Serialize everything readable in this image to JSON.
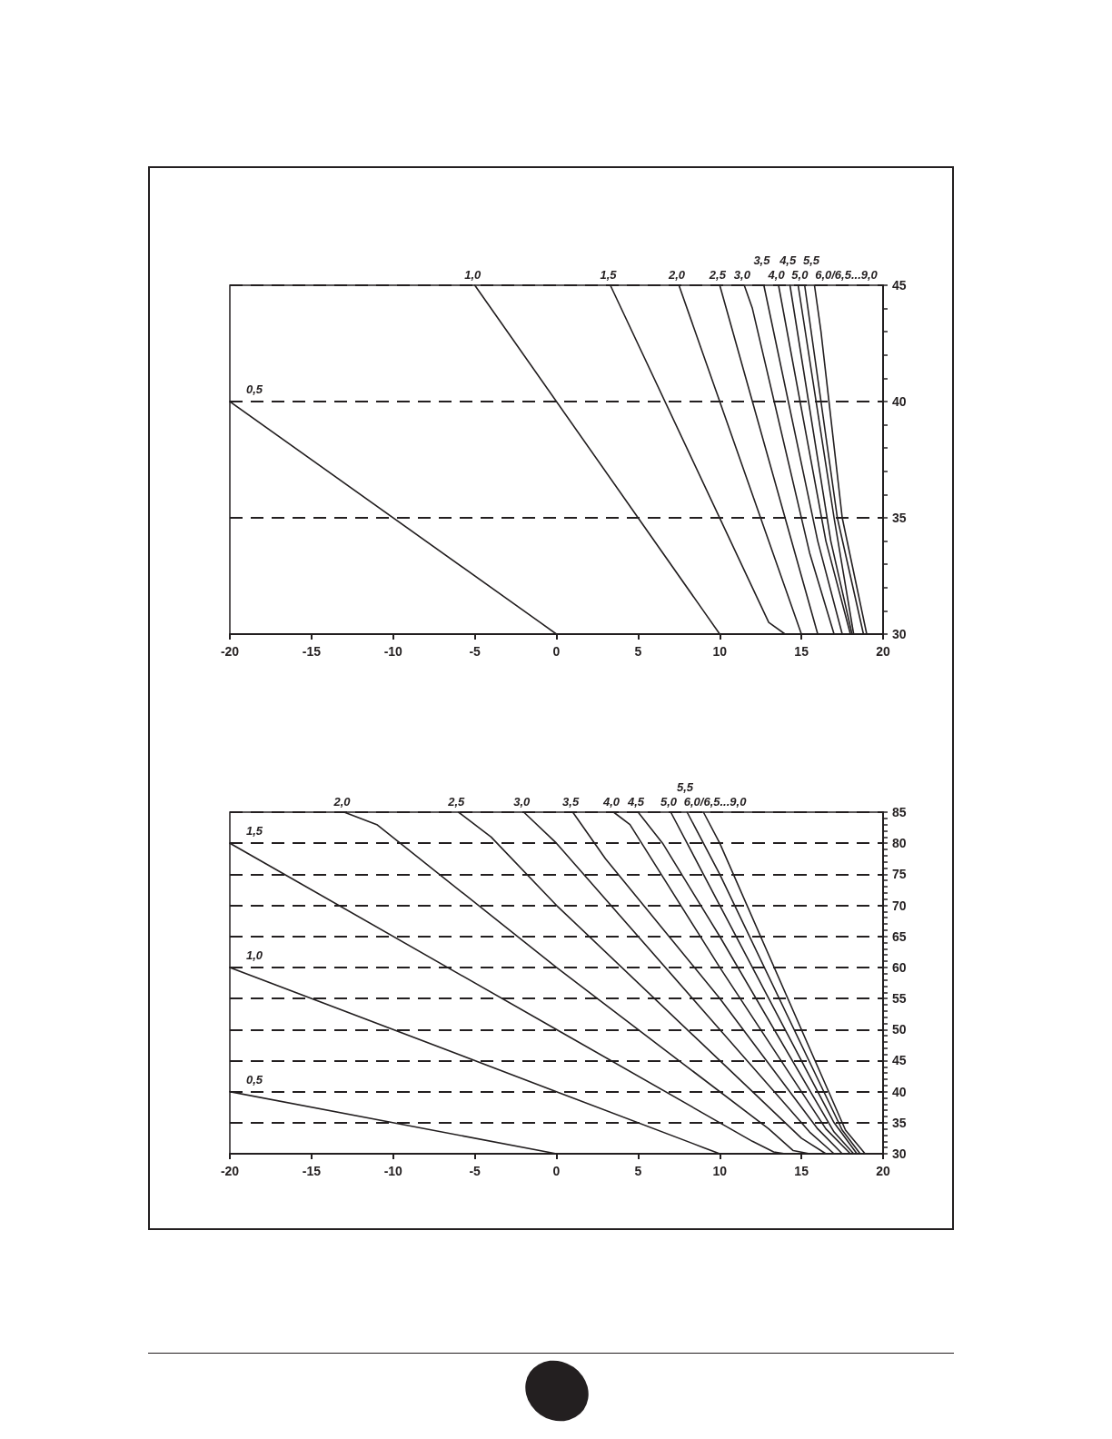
{
  "chart_data": [
    {
      "type": "line",
      "marker": "none",
      "line_style": "solid",
      "grid": "y",
      "xlim": [
        -20,
        20
      ],
      "xticks": [
        -20,
        -15,
        -10,
        -5,
        0,
        5,
        10,
        15,
        20
      ],
      "ylim": [
        30,
        45
      ],
      "yticks": [
        30,
        {
          "value": 31,
          "label": null
        },
        {
          "value": 32,
          "label": null
        },
        {
          "value": 33,
          "label": null
        },
        {
          "value": 34,
          "label": null
        },
        35,
        {
          "value": 36,
          "label": null
        },
        {
          "value": 37,
          "label": null
        },
        {
          "value": 38,
          "label": null
        },
        {
          "value": 39,
          "label": null
        },
        40,
        {
          "value": 41,
          "label": null
        },
        {
          "value": 42,
          "label": null
        },
        {
          "value": 43,
          "label": null
        },
        {
          "value": 44,
          "label": null
        },
        45
      ],
      "series": [
        {
          "name": "0,5",
          "color": "#231f20",
          "x": [
            -20,
            -1,
            0
          ],
          "values": [
            40,
            30.5,
            30
          ]
        },
        {
          "name": "1,0",
          "color": "#231f20",
          "x": [
            -5,
            9,
            10
          ],
          "values": [
            45,
            31,
            30
          ]
        },
        {
          "name": "1,5",
          "color": "#231f20",
          "x": [
            3.3,
            12,
            13,
            14
          ],
          "values": [
            45,
            32,
            30.5,
            30
          ]
        },
        {
          "name": "2,0",
          "color": "#231f20",
          "x": [
            7.5,
            14,
            15
          ],
          "values": [
            45,
            32,
            30
          ]
        },
        {
          "name": "2,5",
          "color": "#231f20",
          "x": [
            10,
            15,
            16
          ],
          "values": [
            45,
            32.5,
            30
          ]
        },
        {
          "name": "3,0",
          "color": "#231f20",
          "x": [
            11.5,
            12,
            15.5,
            17
          ],
          "values": [
            45,
            44,
            33.5,
            30
          ]
        },
        {
          "name": "3,5",
          "color": "#231f20",
          "x": [
            12.7,
            16,
            17.5
          ],
          "values": [
            45,
            34,
            30
          ]
        },
        {
          "name": "4,0",
          "color": "#231f20",
          "x": [
            13.6,
            16.5,
            18
          ],
          "values": [
            45,
            34,
            30
          ]
        },
        {
          "name": "4,5",
          "color": "#231f20",
          "x": [
            14.3,
            16.8,
            18.1
          ],
          "values": [
            45,
            34,
            30
          ]
        },
        {
          "name": "5,0",
          "color": "#231f20",
          "x": [
            14.8,
            17,
            18.2
          ],
          "values": [
            45,
            35,
            30
          ]
        },
        {
          "name": "5,5",
          "color": "#231f20",
          "x": [
            15.2,
            17.2,
            18.8
          ],
          "values": [
            45,
            35,
            30
          ]
        },
        {
          "name": "6,0/6,5...9,0",
          "color": "#231f20",
          "x": [
            15.8,
            16.2,
            17.5,
            19
          ],
          "values": [
            45,
            43,
            35,
            30
          ]
        }
      ]
    },
    {
      "type": "line",
      "marker": "none",
      "line_style": "solid",
      "grid": "y",
      "xlim": [
        -20,
        20
      ],
      "xticks": [
        -20,
        -15,
        -10,
        -5,
        0,
        5,
        10,
        15,
        20
      ],
      "ylim": [
        30,
        85
      ],
      "yticks": [
        30,
        {
          "value": 31,
          "label": null
        },
        {
          "value": 32,
          "label": null
        },
        {
          "value": 33,
          "label": null
        },
        {
          "value": 34,
          "label": null
        },
        35,
        {
          "value": 36,
          "label": null
        },
        {
          "value": 37,
          "label": null
        },
        {
          "value": 38,
          "label": null
        },
        {
          "value": 39,
          "label": null
        },
        40,
        {
          "value": 41,
          "label": null
        },
        {
          "value": 42,
          "label": null
        },
        {
          "value": 43,
          "label": null
        },
        {
          "value": 44,
          "label": null
        },
        45,
        {
          "value": 46,
          "label": null
        },
        {
          "value": 47,
          "label": null
        },
        {
          "value": 48,
          "label": null
        },
        {
          "value": 49,
          "label": null
        },
        50,
        {
          "value": 51,
          "label": null
        },
        {
          "value": 52,
          "label": null
        },
        {
          "value": 53,
          "label": null
        },
        {
          "value": 54,
          "label": null
        },
        55,
        {
          "value": 56,
          "label": null
        },
        {
          "value": 57,
          "label": null
        },
        {
          "value": 58,
          "label": null
        },
        {
          "value": 59,
          "label": null
        },
        60,
        {
          "value": 61,
          "label": null
        },
        {
          "value": 62,
          "label": null
        },
        {
          "value": 63,
          "label": null
        },
        {
          "value": 64,
          "label": null
        },
        65,
        {
          "value": 66,
          "label": null
        },
        {
          "value": 67,
          "label": null
        },
        {
          "value": 68,
          "label": null
        },
        {
          "value": 69,
          "label": null
        },
        70,
        {
          "value": 71,
          "label": null
        },
        {
          "value": 72,
          "label": null
        },
        {
          "value": 73,
          "label": null
        },
        {
          "value": 74,
          "label": null
        },
        75,
        {
          "value": 76,
          "label": null
        },
        {
          "value": 77,
          "label": null
        },
        {
          "value": 78,
          "label": null
        },
        {
          "value": 79,
          "label": null
        },
        80,
        {
          "value": 81,
          "label": null
        },
        {
          "value": 82,
          "label": null
        },
        {
          "value": 83,
          "label": null
        },
        {
          "value": 84,
          "label": null
        },
        85
      ],
      "series": [
        {
          "name": "0,5",
          "color": "#231f20",
          "x": [
            -20,
            0
          ],
          "values": [
            40,
            30
          ]
        },
        {
          "name": "1,0",
          "color": "#231f20",
          "x": [
            -20,
            0,
            9,
            10
          ],
          "values": [
            60,
            40,
            31,
            30
          ]
        },
        {
          "name": "1,5",
          "color": "#231f20",
          "x": [
            -20,
            0,
            12,
            13.3,
            14
          ],
          "values": [
            80,
            50,
            32,
            30.3,
            30
          ]
        },
        {
          "name": "2,0",
          "color": "#231f20",
          "x": [
            -13,
            -11,
            0,
            13,
            14.5,
            15.5
          ],
          "values": [
            85,
            83,
            60,
            34,
            30.5,
            30
          ]
        },
        {
          "name": "2,5",
          "color": "#231f20",
          "x": [
            -6,
            -4,
            0,
            10,
            15,
            16.5
          ],
          "values": [
            85,
            81,
            70,
            45,
            32.5,
            30
          ]
        },
        {
          "name": "3,0",
          "color": "#231f20",
          "x": [
            -2,
            0,
            10,
            15.5,
            17
          ],
          "values": [
            85,
            80,
            50,
            33.5,
            30
          ]
        },
        {
          "name": "3,5",
          "color": "#231f20",
          "x": [
            1,
            3,
            10,
            16,
            17.5
          ],
          "values": [
            85,
            77.5,
            55,
            34,
            30
          ]
        },
        {
          "name": "4,0",
          "color": "#231f20",
          "x": [
            3.5,
            4.5,
            10,
            16.5,
            18
          ],
          "values": [
            85,
            83,
            60,
            34,
            30
          ]
        },
        {
          "name": "4,5",
          "color": "#231f20",
          "x": [
            5,
            6.5,
            10,
            17,
            18.2
          ],
          "values": [
            85,
            80,
            65,
            33.5,
            30
          ]
        },
        {
          "name": "5,0",
          "color": "#231f20",
          "x": [
            7,
            10,
            17,
            18.4
          ],
          "values": [
            85,
            70,
            35,
            30
          ]
        },
        {
          "name": "5,5",
          "color": "#231f20",
          "x": [
            8,
            10,
            17.5,
            18.6
          ],
          "values": [
            85,
            75,
            33.8,
            30
          ]
        },
        {
          "name": "6,0/6,5...9,0",
          "color": "#231f20",
          "x": [
            9,
            10,
            17.7,
            18.9
          ],
          "values": [
            85,
            80,
            33.8,
            30
          ]
        }
      ]
    }
  ]
}
